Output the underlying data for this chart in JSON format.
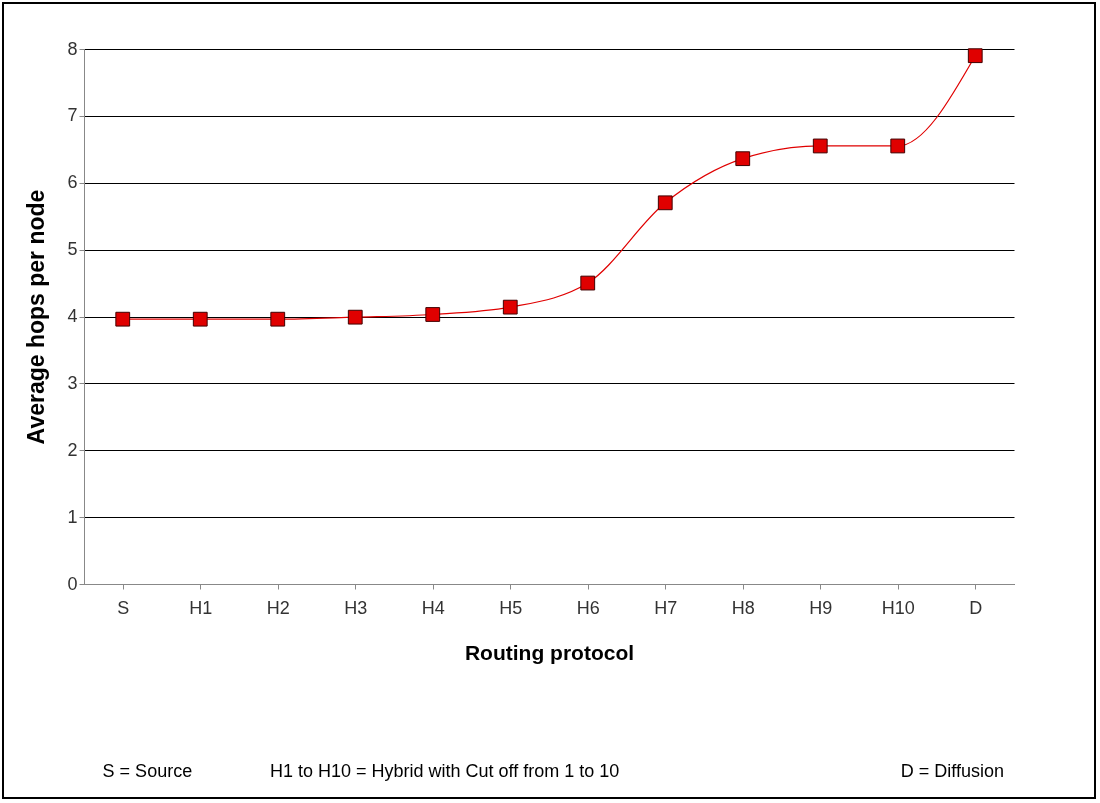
{
  "chart_data": {
    "type": "line",
    "xlabel": "Routing protocol",
    "ylabel": "Average hops per node",
    "categories": [
      "S",
      "H1",
      "H2",
      "H3",
      "H4",
      "H5",
      "H6",
      "H7",
      "H8",
      "H9",
      "H10",
      "D"
    ],
    "series": [
      {
        "color": "#e00000",
        "values": [
          3.96,
          3.96,
          3.96,
          3.99,
          4.03,
          4.14,
          4.5,
          5.7,
          6.36,
          6.55,
          6.55,
          7.9
        ]
      }
    ],
    "ylim": [
      0,
      8
    ],
    "yticks": [
      0,
      1,
      2,
      3,
      4,
      5,
      6,
      7,
      8
    ],
    "grid": "y",
    "marker": "square",
    "line_style": "solid",
    "annotations": [
      "S = Source",
      "H1 to H10 = Hybrid with Cut off from 1 to 10",
      "D = Diffusion"
    ]
  }
}
